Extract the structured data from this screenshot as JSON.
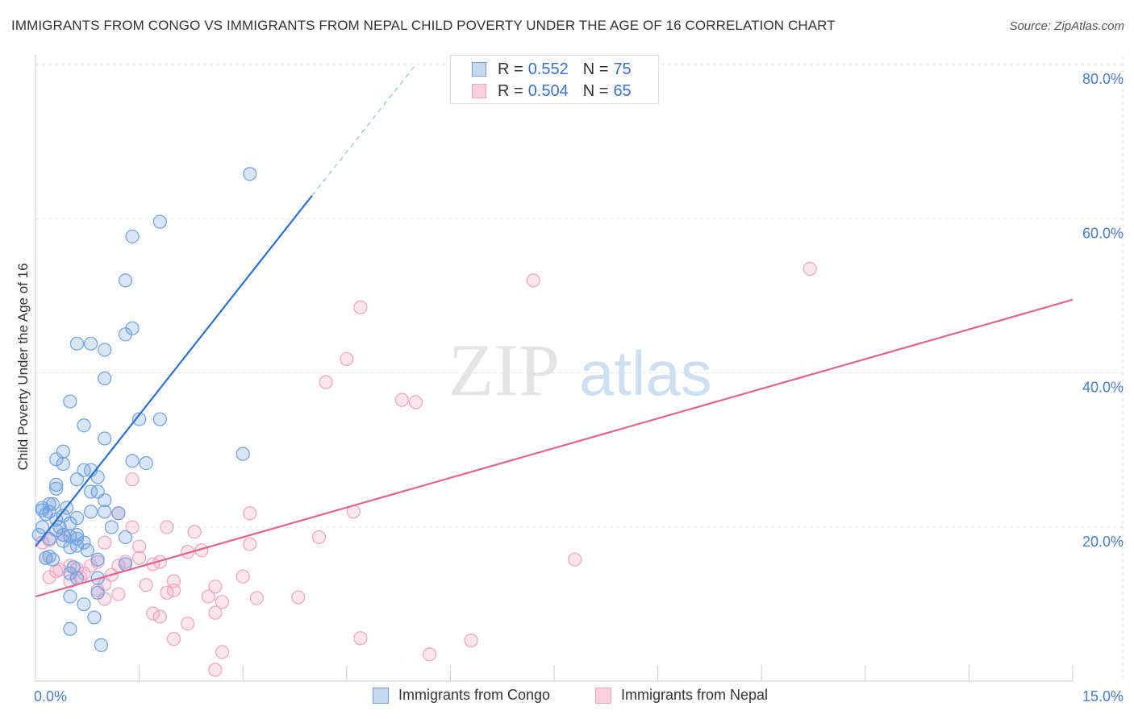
{
  "title": "IMMIGRANTS FROM CONGO VS IMMIGRANTS FROM NEPAL CHILD POVERTY UNDER THE AGE OF 16 CORRELATION CHART",
  "source": "Source: ZipAtlas.com",
  "watermark": {
    "zip": "ZIP",
    "atlas": "atlas"
  },
  "legend": {
    "congo": {
      "r_label": "R = ",
      "r_value": "0.552",
      "n_label": "N = ",
      "n_value": "75"
    },
    "nepal": {
      "r_label": "R = ",
      "r_value": "0.504",
      "n_label": "N = ",
      "n_value": "65"
    }
  },
  "chart_data": {
    "type": "scatter",
    "title": "IMMIGRANTS FROM CONGO VS IMMIGRANTS FROM NEPAL CHILD POVERTY UNDER THE AGE OF 16 CORRELATION CHART",
    "xlabel": "",
    "ylabel": "Child Poverty Under the Age of 16",
    "xlim": [
      0,
      15
    ],
    "ylim": [
      0,
      82
    ],
    "x_tick_labels": [
      "0.0%",
      "15.0%"
    ],
    "y_ticks": [
      20,
      40,
      60,
      80
    ],
    "y_tick_labels": [
      "20.0%",
      "40.0%",
      "60.0%",
      "80.0%"
    ],
    "grid": true,
    "legend_position": "top-center",
    "colors": {
      "congo": "#6fa0de",
      "nepal": "#f0a3bd",
      "congo_line": "#2e6fd0",
      "nepal_line": "#e06592"
    },
    "series": [
      {
        "name": "Immigrants from Congo",
        "r": 0.552,
        "n": 75,
        "trend": {
          "x0": 0,
          "y0": 17.5,
          "x1": 4.0,
          "y1": 63.0,
          "dash_x1": 5.5,
          "dash_y1": 80.0
        },
        "points": [
          [
            3.1,
            65.8
          ],
          [
            1.8,
            59.6
          ],
          [
            1.4,
            57.7
          ],
          [
            1.3,
            52.0
          ],
          [
            1.4,
            45.8
          ],
          [
            1.3,
            45.0
          ],
          [
            0.6,
            43.8
          ],
          [
            0.8,
            43.8
          ],
          [
            1.0,
            43.0
          ],
          [
            1.0,
            39.3
          ],
          [
            0.5,
            36.3
          ],
          [
            0.7,
            33.2
          ],
          [
            1.5,
            34.0
          ],
          [
            1.8,
            34.0
          ],
          [
            1.0,
            31.5
          ],
          [
            0.4,
            29.8
          ],
          [
            3.0,
            29.5
          ],
          [
            1.4,
            28.6
          ],
          [
            1.6,
            28.3
          ],
          [
            0.3,
            28.8
          ],
          [
            0.4,
            28.2
          ],
          [
            0.7,
            27.4
          ],
          [
            0.8,
            27.4
          ],
          [
            0.9,
            26.5
          ],
          [
            0.6,
            26.2
          ],
          [
            0.3,
            25.5
          ],
          [
            0.3,
            25.0
          ],
          [
            0.9,
            24.6
          ],
          [
            0.8,
            24.6
          ],
          [
            1.0,
            23.5
          ],
          [
            0.2,
            23.0
          ],
          [
            0.1,
            22.2
          ],
          [
            0.1,
            22.5
          ],
          [
            0.2,
            22.0
          ],
          [
            0.15,
            21.7
          ],
          [
            0.4,
            21.5
          ],
          [
            0.6,
            21.2
          ],
          [
            0.8,
            22.0
          ],
          [
            1.2,
            21.8
          ],
          [
            1.0,
            22.0
          ],
          [
            0.3,
            21.0
          ],
          [
            0.5,
            20.5
          ],
          [
            0.1,
            20.0
          ],
          [
            0.3,
            19.6
          ],
          [
            0.4,
            19.0
          ],
          [
            0.5,
            18.8
          ],
          [
            0.6,
            19.0
          ],
          [
            0.2,
            18.5
          ],
          [
            0.4,
            18.2
          ],
          [
            1.3,
            18.7
          ],
          [
            0.7,
            18.0
          ],
          [
            0.5,
            17.4
          ],
          [
            0.6,
            17.6
          ],
          [
            0.2,
            16.2
          ],
          [
            0.25,
            15.8
          ],
          [
            0.9,
            15.8
          ],
          [
            1.3,
            15.2
          ],
          [
            0.5,
            14.0
          ],
          [
            0.6,
            13.4
          ],
          [
            0.9,
            13.4
          ],
          [
            0.9,
            11.5
          ],
          [
            0.5,
            11.0
          ],
          [
            0.7,
            10.0
          ],
          [
            0.85,
            8.3
          ],
          [
            0.5,
            6.8
          ],
          [
            0.95,
            4.7
          ],
          [
            0.05,
            19.0
          ],
          [
            0.25,
            23.0
          ],
          [
            0.35,
            20.0
          ],
          [
            0.6,
            18.5
          ],
          [
            0.15,
            16.0
          ],
          [
            0.45,
            22.5
          ],
          [
            0.75,
            17.0
          ],
          [
            1.1,
            20.0
          ],
          [
            0.55,
            14.8
          ]
        ]
      },
      {
        "name": "Immigrants from Nepal",
        "r": 0.504,
        "n": 65,
        "trend": {
          "x0": 0,
          "y0": 11.0,
          "x1": 15.0,
          "y1": 49.5
        },
        "points": [
          [
            11.2,
            53.5
          ],
          [
            7.2,
            52.0
          ],
          [
            4.7,
            48.5
          ],
          [
            4.5,
            41.8
          ],
          [
            4.2,
            38.8
          ],
          [
            5.3,
            36.5
          ],
          [
            5.5,
            36.2
          ],
          [
            1.4,
            26.2
          ],
          [
            1.2,
            21.8
          ],
          [
            3.1,
            21.8
          ],
          [
            4.6,
            22.0
          ],
          [
            1.9,
            20.0
          ],
          [
            2.3,
            19.4
          ],
          [
            1.4,
            20.0
          ],
          [
            0.1,
            18.0
          ],
          [
            0.2,
            18.3
          ],
          [
            1.0,
            18.0
          ],
          [
            2.2,
            16.8
          ],
          [
            3.1,
            17.8
          ],
          [
            4.1,
            18.7
          ],
          [
            7.8,
            15.8
          ],
          [
            1.5,
            16.0
          ],
          [
            1.7,
            15.2
          ],
          [
            1.8,
            15.5
          ],
          [
            1.2,
            15.0
          ],
          [
            0.9,
            15.5
          ],
          [
            0.5,
            15.0
          ],
          [
            0.6,
            14.6
          ],
          [
            0.7,
            14.0
          ],
          [
            0.3,
            14.3
          ],
          [
            0.2,
            13.5
          ],
          [
            0.5,
            13.0
          ],
          [
            1.0,
            12.6
          ],
          [
            1.1,
            13.8
          ],
          [
            3.0,
            13.6
          ],
          [
            2.6,
            12.3
          ],
          [
            2.0,
            13.0
          ],
          [
            2.0,
            11.8
          ],
          [
            1.9,
            11.5
          ],
          [
            2.5,
            11.0
          ],
          [
            3.2,
            10.8
          ],
          [
            3.8,
            10.9
          ],
          [
            1.2,
            11.3
          ],
          [
            1.0,
            10.7
          ],
          [
            2.7,
            10.3
          ],
          [
            2.6,
            8.9
          ],
          [
            1.7,
            8.8
          ],
          [
            1.8,
            8.4
          ],
          [
            2.2,
            7.5
          ],
          [
            2.0,
            5.5
          ],
          [
            4.7,
            5.6
          ],
          [
            6.3,
            5.3
          ],
          [
            2.7,
            3.8
          ],
          [
            5.7,
            3.5
          ],
          [
            2.6,
            1.5
          ],
          [
            0.15,
            16.0
          ],
          [
            0.35,
            14.5
          ],
          [
            0.8,
            15.0
          ],
          [
            1.5,
            17.5
          ],
          [
            0.4,
            19.0
          ],
          [
            1.3,
            15.5
          ],
          [
            0.65,
            13.5
          ],
          [
            0.9,
            11.8
          ],
          [
            1.6,
            12.5
          ],
          [
            2.4,
            17.0
          ]
        ]
      }
    ]
  },
  "bottom_legend": {
    "congo": "Immigrants from Congo",
    "nepal": "Immigrants from Nepal"
  }
}
